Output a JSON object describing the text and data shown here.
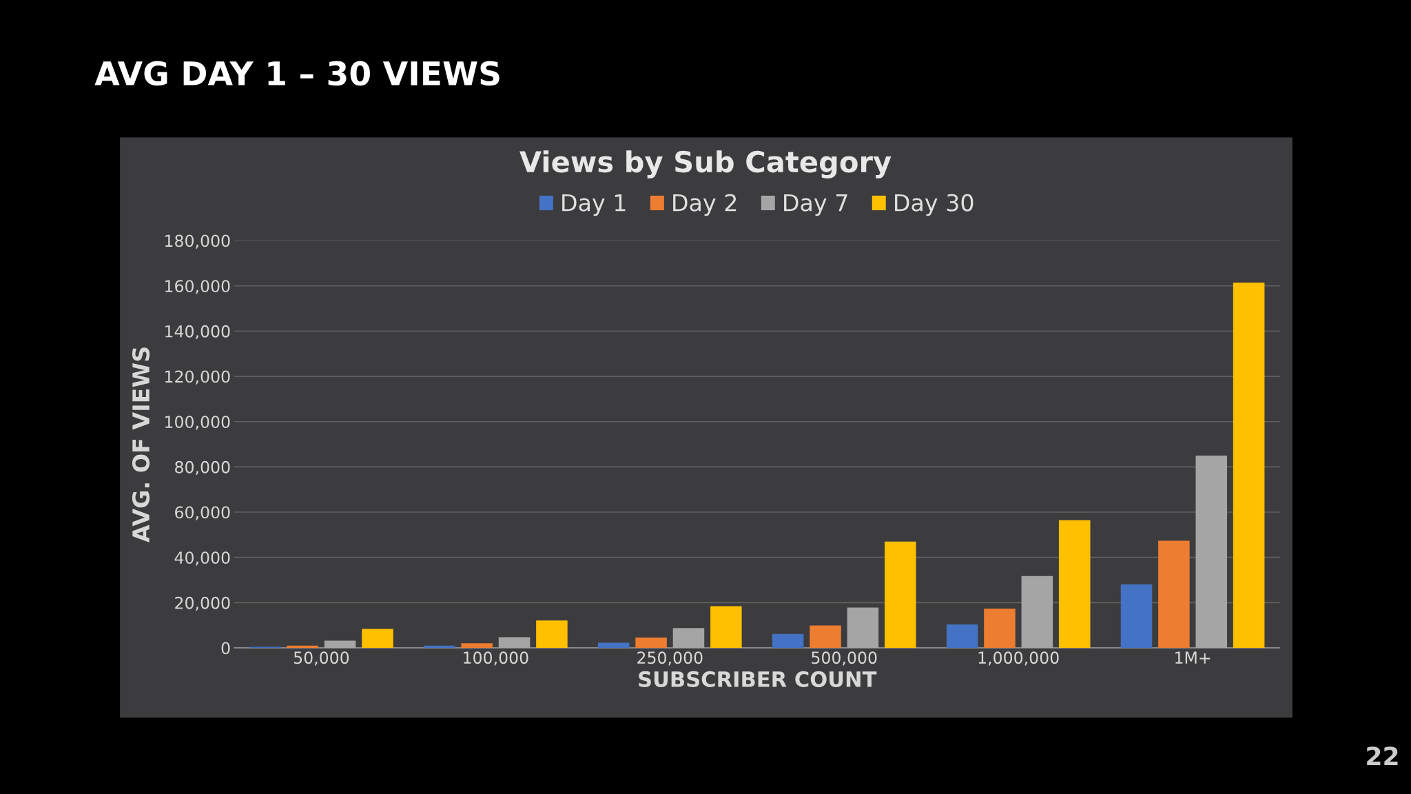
{
  "chart_data": {
    "type": "bar",
    "title": "AVG DAY 1 – 30 VIEWS",
    "subtitle": "Views by Sub Category",
    "xlabel": "SUBSCRIBER COUNT",
    "ylabel": "AVG. OF VIEWS",
    "categories": [
      "50,000",
      "100,000",
      "250,000",
      "500,000",
      "1,000,000",
      "1M+"
    ],
    "series": [
      {
        "name": "Day 1",
        "color": "#4472c4",
        "values": [
          500,
          1000,
          2300,
          6200,
          10400,
          28100
        ]
      },
      {
        "name": "Day 2",
        "color": "#ed7d31",
        "values": [
          1000,
          2100,
          4600,
          9900,
          17400,
          47400
        ]
      },
      {
        "name": "Day 7",
        "color": "#a5a5a5",
        "values": [
          3200,
          4700,
          8800,
          17800,
          31800,
          85000
        ]
      },
      {
        "name": "Day 30",
        "color": "#ffc000",
        "values": [
          8400,
          12100,
          18400,
          47000,
          56400,
          161400
        ]
      }
    ],
    "ylim": [
      0,
      180000
    ],
    "yticks": [
      {
        "value": 0,
        "label": "0"
      },
      {
        "value": 20000,
        "label": "20,000"
      },
      {
        "value": 40000,
        "label": "40,000"
      },
      {
        "value": 60000,
        "label": "60,000"
      },
      {
        "value": 80000,
        "label": "80,000"
      },
      {
        "value": 100000,
        "label": "100,000"
      },
      {
        "value": 120000,
        "label": "120,000"
      },
      {
        "value": 140000,
        "label": "140,000"
      },
      {
        "value": 160000,
        "label": "160,000"
      },
      {
        "value": 180000,
        "label": "180,000"
      }
    ],
    "grid": "y",
    "legend": "top",
    "annotations": [
      "22"
    ]
  }
}
